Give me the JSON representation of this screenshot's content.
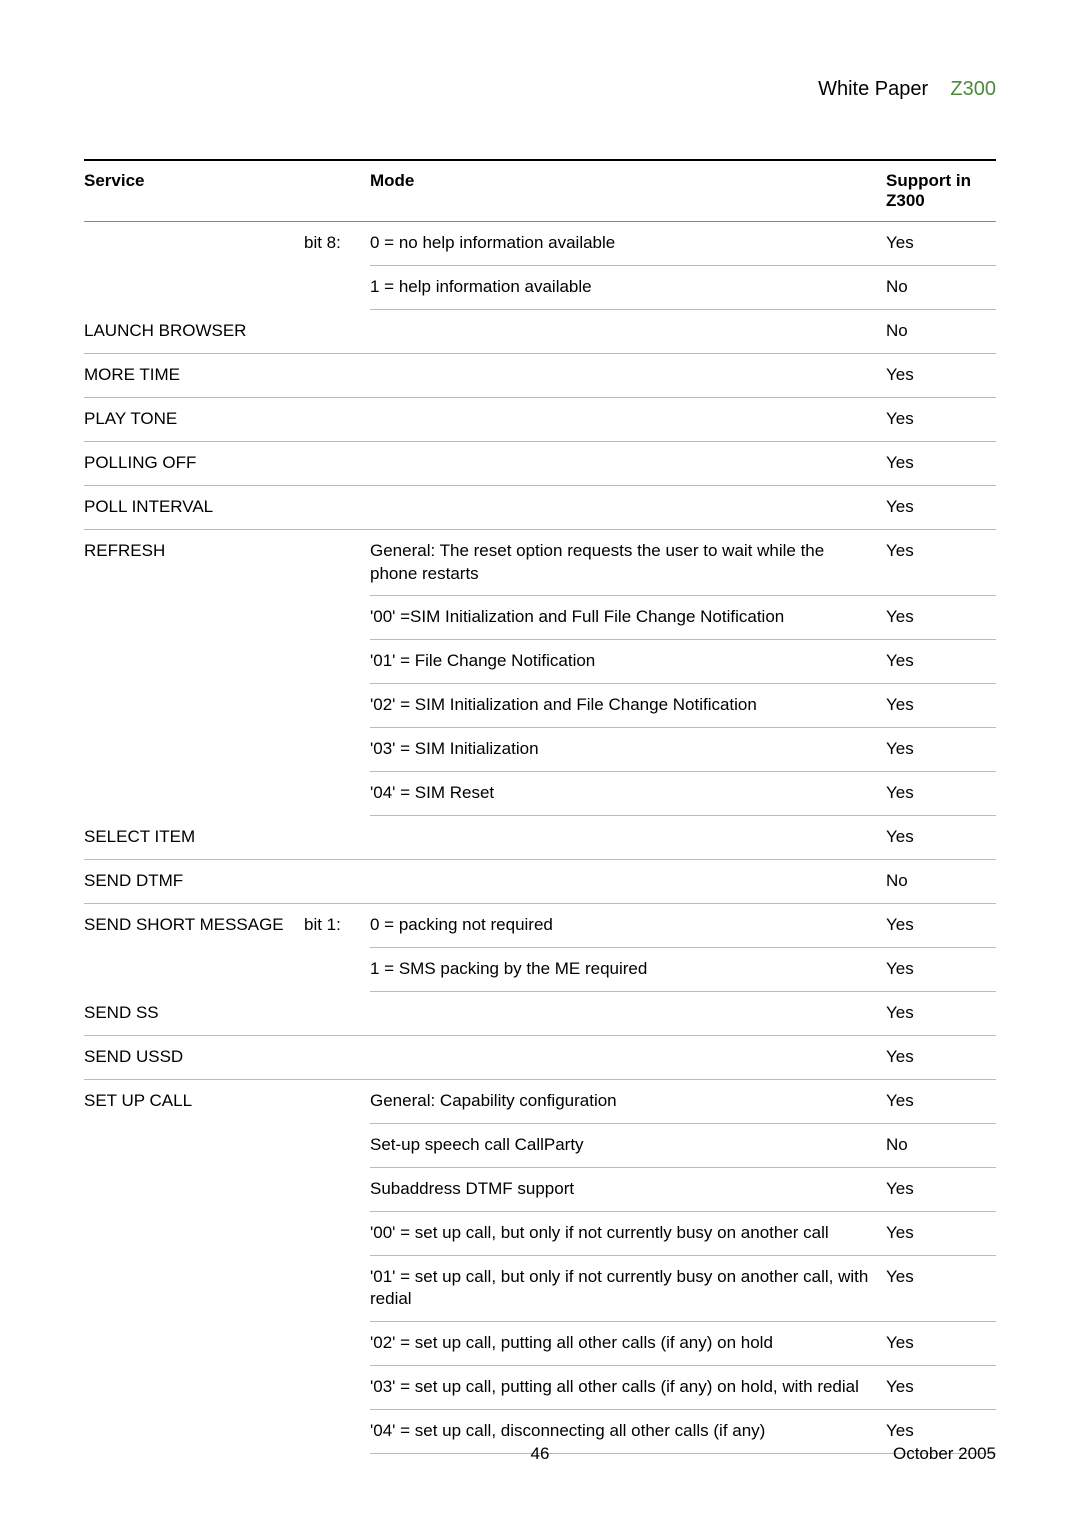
{
  "header": {
    "label": "White Paper",
    "model": "Z300"
  },
  "columns": {
    "service": "Service",
    "mode": "Mode",
    "support": "Support in Z300"
  },
  "rows": [
    {
      "service": "",
      "sub": "bit 8:",
      "mode": "0 = no help information available",
      "support": "Yes"
    },
    {
      "service": "",
      "sub": "",
      "mode": "1 = help information available",
      "support": "No"
    },
    {
      "service": "LAUNCH BROWSER",
      "sub": "",
      "mode": "",
      "support": "No",
      "span": true
    },
    {
      "service": "MORE TIME",
      "sub": "",
      "mode": "",
      "support": "Yes",
      "span": true
    },
    {
      "service": "PLAY TONE",
      "sub": "",
      "mode": "",
      "support": "Yes",
      "span": true
    },
    {
      "service": "POLLING OFF",
      "sub": "",
      "mode": "",
      "support": "Yes",
      "span": true
    },
    {
      "service": "POLL INTERVAL",
      "sub": "",
      "mode": "",
      "support": "Yes",
      "span": true
    },
    {
      "service": "REFRESH",
      "sub": "",
      "mode": "General: The reset option requests the user to wait while the phone restarts",
      "support": "Yes"
    },
    {
      "service": "",
      "sub": "",
      "mode": "'00' =SIM Initialization and Full File Change Notification",
      "support": "Yes"
    },
    {
      "service": "",
      "sub": "",
      "mode": "'01' = File Change Notification",
      "support": "Yes"
    },
    {
      "service": "",
      "sub": "",
      "mode": "'02' = SIM Initialization and File Change Notification",
      "support": "Yes"
    },
    {
      "service": "",
      "sub": "",
      "mode": "'03' = SIM Initialization",
      "support": "Yes"
    },
    {
      "service": "",
      "sub": "",
      "mode": "'04' = SIM Reset",
      "support": "Yes"
    },
    {
      "service": "SELECT ITEM",
      "sub": "",
      "mode": "",
      "support": "Yes",
      "span": true
    },
    {
      "service": "SEND DTMF",
      "sub": "",
      "mode": "",
      "support": "No",
      "span": true
    },
    {
      "service": "SEND SHORT MESSAGE",
      "sub": "bit 1:",
      "mode": "0 = packing not required",
      "support": "Yes"
    },
    {
      "service": "",
      "sub": "",
      "mode": "1 = SMS packing by the ME required",
      "support": "Yes"
    },
    {
      "service": "SEND SS",
      "sub": "",
      "mode": "",
      "support": "Yes",
      "span": true
    },
    {
      "service": "SEND USSD",
      "sub": "",
      "mode": "",
      "support": "Yes",
      "span": true
    },
    {
      "service": "SET UP CALL",
      "sub": "",
      "mode": "General: Capability configuration",
      "support": "Yes"
    },
    {
      "service": "",
      "sub": "",
      "mode": "Set-up speech call CallParty",
      "support": "No"
    },
    {
      "service": "",
      "sub": "",
      "mode": "Subaddress DTMF support",
      "support": "Yes"
    },
    {
      "service": "",
      "sub": "",
      "mode": "'00' = set up call, but only if not currently busy on another call",
      "support": "Yes"
    },
    {
      "service": "",
      "sub": "",
      "mode": "'01' = set up call, but only if not currently busy on another call, with redial",
      "support": "Yes"
    },
    {
      "service": "",
      "sub": "",
      "mode": "'02' = set up call, putting all other calls (if any) on hold",
      "support": "Yes"
    },
    {
      "service": "",
      "sub": "",
      "mode": "'03' = set up call, putting all other calls (if any) on hold, with redial",
      "support": "Yes"
    },
    {
      "service": "",
      "sub": "",
      "mode": "'04' = set up call, disconnecting all other calls (if any)",
      "support": "Yes"
    }
  ],
  "footer": {
    "page": "46",
    "date": "October 2005"
  }
}
